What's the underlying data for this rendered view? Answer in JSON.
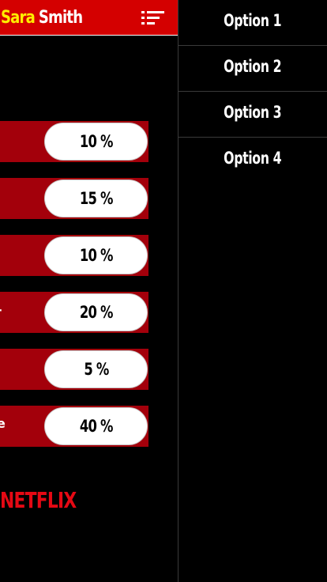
{
  "header": {
    "first_name": "Sara",
    "last_name": "Smith",
    "menu_icon": "sort-menu-icon"
  },
  "rows": [
    {
      "label": "",
      "value": "10 %"
    },
    {
      "label": "",
      "value": "15 %"
    },
    {
      "label": "",
      "value": "10 %"
    },
    {
      "label": "-",
      "value": "20 %"
    },
    {
      "label": "",
      "value": "5 %"
    },
    {
      "label": "e",
      "value": "40 %"
    }
  ],
  "logo": {
    "text": "NETFLIX"
  },
  "side_menu": {
    "items": [
      {
        "label": "Option 1"
      },
      {
        "label": "Option 2"
      },
      {
        "label": "Option 3"
      },
      {
        "label": "Option 4"
      }
    ]
  },
  "colors": {
    "header_bg": "#d40000",
    "first_name": "#ffec00",
    "row_bg": "#a3000b",
    "logo": "#e50914",
    "background": "#000000"
  }
}
